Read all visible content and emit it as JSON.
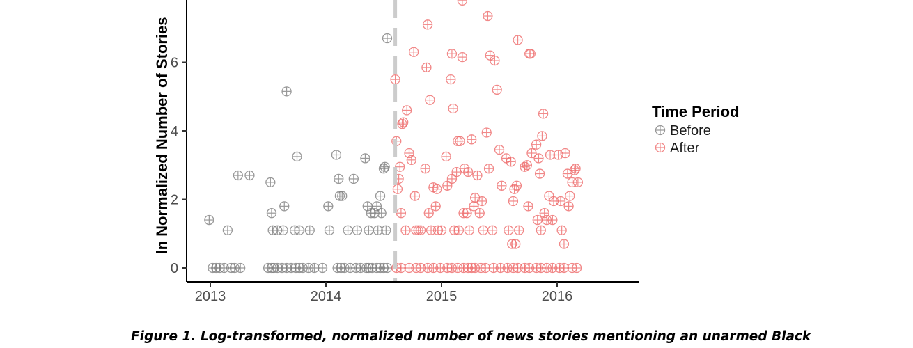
{
  "chart_data": {
    "type": "scatter",
    "ylabel": "ln Normalized Number of Stories",
    "xlabel": "",
    "x_ticks": [
      "2013",
      "2014",
      "2015",
      "2016"
    ],
    "y_ticks": [
      "0",
      "2",
      "4",
      "6"
    ],
    "xlim": [
      2012.9,
      2016.65
    ],
    "ylim_visible": [
      -0.45,
      8.0
    ],
    "cutoff_x": 2014.6,
    "grid": false,
    "legend": {
      "title": "Time Period",
      "placement": "right",
      "entries": [
        {
          "label": "Before",
          "color": "#7f7f7f"
        },
        {
          "label": "After",
          "color": "#ee6b6b"
        }
      ]
    },
    "series": [
      {
        "name": "Before",
        "color": "#7f7f7f",
        "points": [
          [
            2012.99,
            1.4
          ],
          [
            2013.15,
            1.1
          ],
          [
            2013.24,
            2.7
          ],
          [
            2013.34,
            2.7
          ],
          [
            2013.52,
            2.5
          ],
          [
            2013.53,
            1.6
          ],
          [
            2013.54,
            1.1
          ],
          [
            2013.58,
            1.1
          ],
          [
            2013.63,
            1.1
          ],
          [
            2013.64,
            1.8
          ],
          [
            2013.66,
            5.15
          ],
          [
            2013.73,
            1.1
          ],
          [
            2013.75,
            3.25
          ],
          [
            2013.77,
            1.1
          ],
          [
            2013.86,
            1.1
          ],
          [
            2014.02,
            1.8
          ],
          [
            2014.03,
            1.1
          ],
          [
            2014.09,
            3.3
          ],
          [
            2014.11,
            2.6
          ],
          [
            2014.12,
            2.1
          ],
          [
            2014.14,
            2.1
          ],
          [
            2014.19,
            1.1
          ],
          [
            2014.24,
            2.6
          ],
          [
            2014.27,
            1.1
          ],
          [
            2014.34,
            3.2
          ],
          [
            2014.36,
            1.8
          ],
          [
            2014.37,
            1.1
          ],
          [
            2014.39,
            1.6
          ],
          [
            2014.42,
            1.6
          ],
          [
            2014.44,
            1.8
          ],
          [
            2014.45,
            1.1
          ],
          [
            2014.47,
            2.1
          ],
          [
            2014.48,
            1.6
          ],
          [
            2014.5,
            2.9
          ],
          [
            2014.51,
            2.95
          ],
          [
            2014.52,
            1.1
          ],
          [
            2014.53,
            6.7
          ],
          [
            2013.02,
            0
          ],
          [
            2013.05,
            0
          ],
          [
            2013.08,
            0
          ],
          [
            2013.12,
            0
          ],
          [
            2013.18,
            0
          ],
          [
            2013.21,
            0
          ],
          [
            2013.26,
            0
          ],
          [
            2013.5,
            0
          ],
          [
            2013.53,
            0
          ],
          [
            2013.55,
            0
          ],
          [
            2013.58,
            0
          ],
          [
            2013.62,
            0
          ],
          [
            2013.66,
            0
          ],
          [
            2013.7,
            0
          ],
          [
            2013.74,
            0
          ],
          [
            2013.77,
            0
          ],
          [
            2013.8,
            0
          ],
          [
            2013.85,
            0
          ],
          [
            2013.9,
            0
          ],
          [
            2013.97,
            0
          ],
          [
            2014.1,
            0
          ],
          [
            2014.13,
            0
          ],
          [
            2014.16,
            0
          ],
          [
            2014.21,
            0
          ],
          [
            2014.26,
            0
          ],
          [
            2014.3,
            0
          ],
          [
            2014.35,
            0
          ],
          [
            2014.37,
            0
          ],
          [
            2014.4,
            0
          ],
          [
            2014.44,
            0
          ],
          [
            2014.47,
            0
          ],
          [
            2014.5,
            0
          ],
          [
            2014.53,
            0
          ]
        ]
      },
      {
        "name": "After",
        "color": "#ee6b6b",
        "points": [
          [
            2014.6,
            5.5
          ],
          [
            2014.61,
            3.7
          ],
          [
            2014.62,
            2.3
          ],
          [
            2014.63,
            2.6
          ],
          [
            2014.64,
            2.95
          ],
          [
            2014.65,
            1.6
          ],
          [
            2014.66,
            4.2
          ],
          [
            2014.67,
            4.25
          ],
          [
            2014.69,
            1.1
          ],
          [
            2014.7,
            4.6
          ],
          [
            2014.72,
            3.35
          ],
          [
            2014.74,
            3.15
          ],
          [
            2014.76,
            6.3
          ],
          [
            2014.77,
            2.1
          ],
          [
            2014.78,
            1.1
          ],
          [
            2014.8,
            1.1
          ],
          [
            2014.82,
            1.1
          ],
          [
            2014.86,
            2.9
          ],
          [
            2014.87,
            5.85
          ],
          [
            2014.88,
            7.1
          ],
          [
            2014.89,
            1.6
          ],
          [
            2014.9,
            4.9
          ],
          [
            2014.91,
            1.1
          ],
          [
            2014.93,
            2.35
          ],
          [
            2014.95,
            1.8
          ],
          [
            2014.96,
            2.3
          ],
          [
            2014.97,
            1.1
          ],
          [
            2015.0,
            1.1
          ],
          [
            2015.04,
            3.25
          ],
          [
            2015.05,
            2.4
          ],
          [
            2015.08,
            5.5
          ],
          [
            2015.09,
            6.25
          ],
          [
            2015.09,
            2.6
          ],
          [
            2015.1,
            4.65
          ],
          [
            2015.11,
            1.1
          ],
          [
            2015.13,
            2.8
          ],
          [
            2015.14,
            3.7
          ],
          [
            2015.15,
            1.1
          ],
          [
            2015.16,
            3.7
          ],
          [
            2015.18,
            7.8
          ],
          [
            2015.18,
            6.15
          ],
          [
            2015.19,
            1.6
          ],
          [
            2015.2,
            2.9
          ],
          [
            2015.22,
            1.6
          ],
          [
            2015.23,
            2.8
          ],
          [
            2015.24,
            1.1
          ],
          [
            2015.26,
            3.75
          ],
          [
            2015.28,
            1.8
          ],
          [
            2015.29,
            2.05
          ],
          [
            2015.31,
            2.7
          ],
          [
            2015.33,
            1.6
          ],
          [
            2015.35,
            1.95
          ],
          [
            2015.36,
            1.1
          ],
          [
            2015.39,
            3.95
          ],
          [
            2015.4,
            7.35
          ],
          [
            2015.41,
            2.9
          ],
          [
            2015.42,
            6.2
          ],
          [
            2015.44,
            1.1
          ],
          [
            2015.46,
            6.05
          ],
          [
            2015.48,
            5.2
          ],
          [
            2015.5,
            3.45
          ],
          [
            2015.52,
            2.4
          ],
          [
            2015.56,
            3.2
          ],
          [
            2015.58,
            1.1
          ],
          [
            2015.6,
            3.1
          ],
          [
            2015.61,
            0.7
          ],
          [
            2015.62,
            1.95
          ],
          [
            2015.63,
            2.3
          ],
          [
            2015.64,
            0.7
          ],
          [
            2015.65,
            2.4
          ],
          [
            2015.66,
            6.65
          ],
          [
            2015.67,
            1.1
          ],
          [
            2015.72,
            2.95
          ],
          [
            2015.74,
            3.0
          ],
          [
            2015.75,
            1.8
          ],
          [
            2015.76,
            6.25
          ],
          [
            2015.77,
            6.25
          ],
          [
            2015.78,
            3.35
          ],
          [
            2015.82,
            3.6
          ],
          [
            2015.83,
            1.4
          ],
          [
            2015.84,
            3.2
          ],
          [
            2015.85,
            2.75
          ],
          [
            2015.86,
            1.1
          ],
          [
            2015.87,
            3.85
          ],
          [
            2015.88,
            4.5
          ],
          [
            2015.89,
            1.6
          ],
          [
            2015.91,
            1.4
          ],
          [
            2015.93,
            2.1
          ],
          [
            2015.94,
            3.3
          ],
          [
            2015.96,
            1.4
          ],
          [
            2015.97,
            1.95
          ],
          [
            2016.01,
            3.3
          ],
          [
            2016.03,
            1.95
          ],
          [
            2016.04,
            1.1
          ],
          [
            2016.06,
            0.7
          ],
          [
            2016.07,
            3.35
          ],
          [
            2016.09,
            2.75
          ],
          [
            2016.1,
            1.8
          ],
          [
            2016.11,
            2.1
          ],
          [
            2016.13,
            2.5
          ],
          [
            2016.15,
            2.85
          ],
          [
            2016.16,
            2.9
          ],
          [
            2016.18,
            2.5
          ],
          [
            2014.61,
            0
          ],
          [
            2014.65,
            0
          ],
          [
            2014.72,
            0
          ],
          [
            2014.78,
            0
          ],
          [
            2014.82,
            0
          ],
          [
            2014.88,
            0
          ],
          [
            2014.93,
            0
          ],
          [
            2014.99,
            0
          ],
          [
            2015.05,
            0
          ],
          [
            2015.09,
            0
          ],
          [
            2015.14,
            0
          ],
          [
            2015.19,
            0
          ],
          [
            2015.23,
            0
          ],
          [
            2015.26,
            0
          ],
          [
            2015.29,
            0
          ],
          [
            2015.34,
            0
          ],
          [
            2015.38,
            0
          ],
          [
            2015.45,
            0
          ],
          [
            2015.51,
            0
          ],
          [
            2015.57,
            0
          ],
          [
            2015.62,
            0
          ],
          [
            2015.66,
            0
          ],
          [
            2015.72,
            0
          ],
          [
            2015.76,
            0
          ],
          [
            2015.82,
            0
          ],
          [
            2015.86,
            0
          ],
          [
            2015.91,
            0
          ],
          [
            2015.96,
            0
          ],
          [
            2016.02,
            0
          ],
          [
            2016.06,
            0
          ],
          [
            2016.13,
            0
          ],
          [
            2016.17,
            0
          ]
        ]
      }
    ]
  },
  "caption": {
    "text": "Figure 1. Log-transformed, normalized number of news stories mentioning an unarmed Black"
  }
}
